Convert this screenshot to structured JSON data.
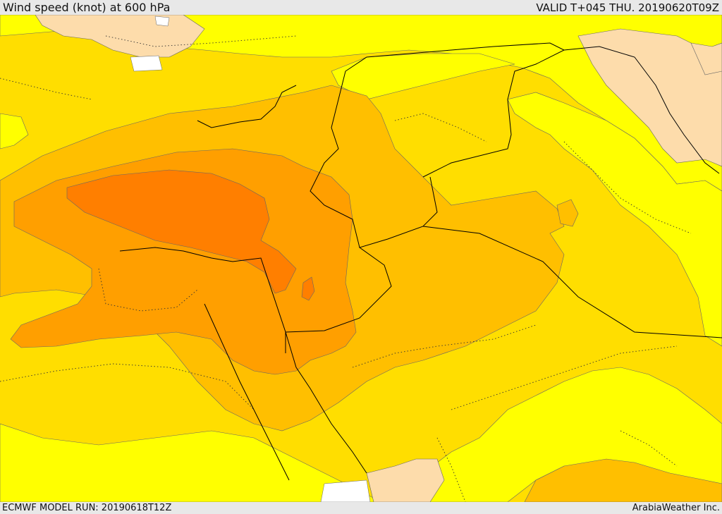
{
  "header": {
    "title": "Wind speed (knot) at 600 hPa",
    "valid": "VALID T+045 THU. 20190620T09Z"
  },
  "footer": {
    "model_run": "ECMWF MODEL RUN: 20190618T12Z",
    "credit": "ArabiaWeather Inc."
  },
  "map": {
    "variable": "wind speed",
    "level_hpa": 600,
    "unit": "knot",
    "colors": {
      "band_1": "#ffff00",
      "band_2": "#ffde00",
      "band_3": "#ffbf00",
      "band_4": "#ff9f00",
      "band_5": "#ff7f00",
      "land_low": "#fddcab",
      "no_data": "#ffffff",
      "borders": "#000000"
    }
  }
}
